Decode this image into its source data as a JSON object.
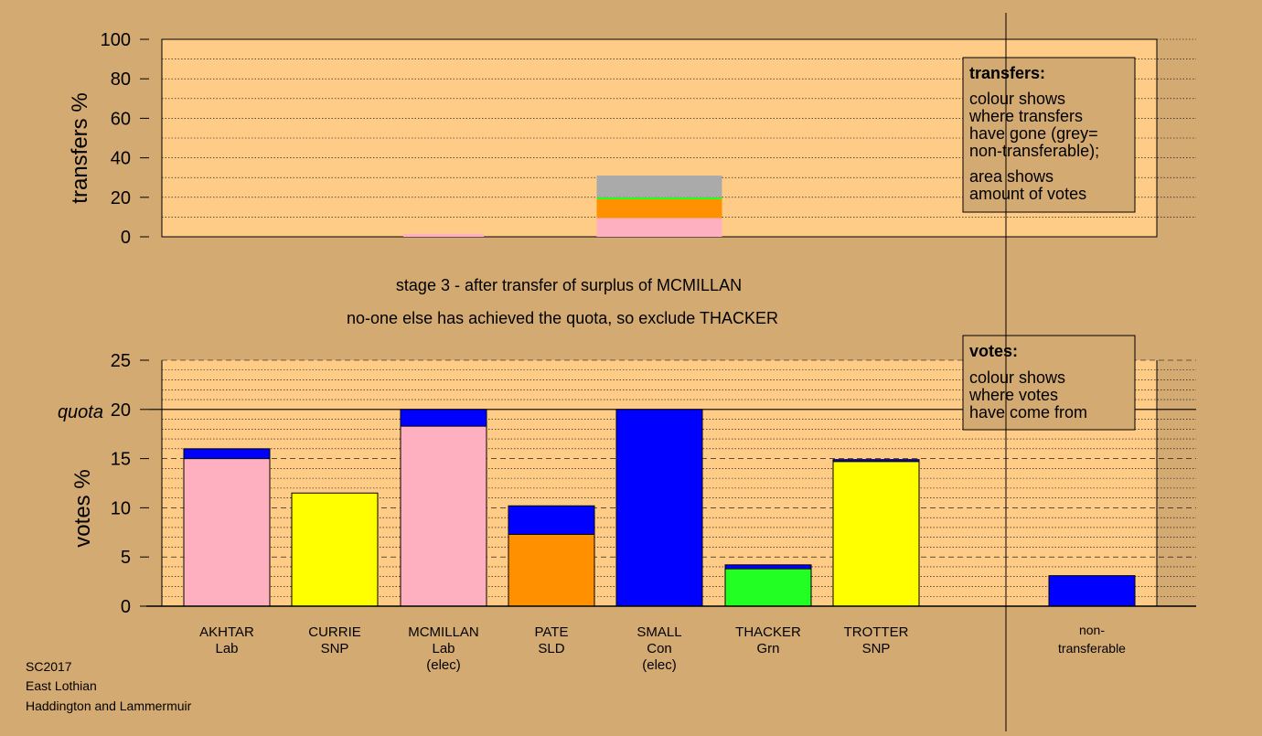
{
  "colors": {
    "background": "#d4aa73",
    "plot_bg": "#ffcc88",
    "Lab": "#ffb0c0",
    "SNP": "#ffff00",
    "SLD": "#ff9000",
    "Con": "#0000ff",
    "Grn": "#22ff22",
    "non_transferable": "#aaaaaa"
  },
  "chart_data": [
    {
      "type": "bar",
      "name": "transfers",
      "ylabel": "transfers %",
      "ylim": [
        0,
        100
      ],
      "yticks": [
        "0",
        "20",
        "40",
        "60",
        "80",
        "100"
      ],
      "categories": [
        "AKHTAR",
        "CURRIE",
        "MCMILLAN",
        "PATE",
        "SMALL",
        "THACKER",
        "TROTTER"
      ],
      "stacks": [
        {
          "candidate": "MCMILLAN",
          "segments": [
            {
              "to": "Lab",
              "value": 1.5
            }
          ]
        },
        {
          "candidate": "SMALL",
          "segments": [
            {
              "to": "Lab",
              "value": 9.5
            },
            {
              "to": "SLD",
              "value": 9.5
            },
            {
              "to": "Grn",
              "value": 1.0
            },
            {
              "to": "non-transferable",
              "value": 11.0
            }
          ]
        }
      ],
      "legend": {
        "title": "transfers:",
        "lines1": [
          "colour shows",
          "where transfers",
          "have gone (grey=",
          "non-transferable);"
        ],
        "lines2": [
          "area shows",
          "amount of votes"
        ]
      }
    },
    {
      "type": "bar",
      "name": "votes",
      "ylabel": "votes %",
      "ylim": [
        0,
        25
      ],
      "yticks": [
        "0",
        "5",
        "10",
        "15",
        "20",
        "25"
      ],
      "quota": 20,
      "quota_label": "quota",
      "candidates": [
        {
          "name": "AKHTAR",
          "party": "Lab",
          "elec": "",
          "segments": [
            {
              "from": "Lab",
              "value": 15.0
            },
            {
              "from": "Con",
              "value": 1.0
            }
          ]
        },
        {
          "name": "CURRIE",
          "party": "SNP",
          "elec": "",
          "segments": [
            {
              "from": "SNP",
              "value": 11.5
            }
          ]
        },
        {
          "name": "MCMILLAN",
          "party": "Lab",
          "elec": "(elec)",
          "segments": [
            {
              "from": "Lab",
              "value": 18.3
            },
            {
              "from": "Con",
              "value": 1.7
            }
          ]
        },
        {
          "name": "PATE",
          "party": "SLD",
          "elec": "",
          "segments": [
            {
              "from": "SLD",
              "value": 7.3
            },
            {
              "from": "Con",
              "value": 2.9
            }
          ]
        },
        {
          "name": "SMALL",
          "party": "Con",
          "elec": "(elec)",
          "segments": [
            {
              "from": "Con",
              "value": 20.0
            }
          ]
        },
        {
          "name": "THACKER",
          "party": "Grn",
          "elec": "",
          "segments": [
            {
              "from": "Grn",
              "value": 3.8
            },
            {
              "from": "Con",
              "value": 0.4
            }
          ]
        },
        {
          "name": "TROTTER",
          "party": "SNP",
          "elec": "",
          "segments": [
            {
              "from": "SNP",
              "value": 14.7
            },
            {
              "from": "Con",
              "value": 0.2
            }
          ]
        }
      ],
      "non_transferable": {
        "label1": "non-",
        "label2": "transferable",
        "segments": [
          {
            "from": "Con",
            "value": 3.1
          }
        ]
      },
      "legend": {
        "title": "votes:",
        "lines": [
          "colour shows",
          "where votes",
          "have come from"
        ]
      }
    }
  ],
  "stage": {
    "line1": "stage 3 - after transfer of surplus of MCMILLAN",
    "line2": "no-one else has achieved the quota, so exclude THACKER"
  },
  "footer": {
    "election": "SC2017",
    "council": "East Lothian",
    "ward": "Haddington and Lammermuir"
  }
}
